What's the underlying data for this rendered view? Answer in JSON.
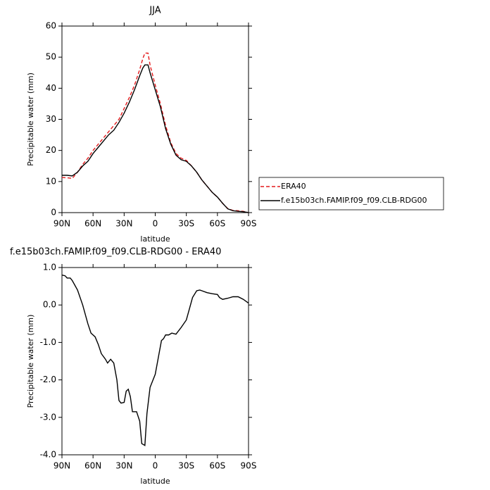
{
  "chart_data": [
    {
      "type": "line",
      "title": "JJA",
      "x_label": "latitude",
      "y_label": "Precipitable water (mm)",
      "x": [
        90,
        85,
        80,
        75,
        70,
        65,
        60,
        55,
        50,
        45,
        40,
        35,
        30,
        25,
        20,
        15,
        12,
        10,
        7,
        5,
        0,
        -5,
        -10,
        -15,
        -20,
        -25,
        -30,
        -35,
        -40,
        -45,
        -50,
        -55,
        -60,
        -65,
        -70,
        -75,
        -80,
        -85,
        -90
      ],
      "series": [
        {
          "name": "ERA40",
          "color": "#e41a1c",
          "dash": true,
          "values": [
            11.3,
            11.2,
            11,
            13,
            15.5,
            17.5,
            20,
            22,
            24,
            26,
            28,
            30,
            33.5,
            37,
            41,
            46,
            49.5,
            51.3,
            51.3,
            47.5,
            41,
            35,
            28,
            22.5,
            19,
            17.5,
            16.8,
            15,
            13,
            10.5,
            8.5,
            6.5,
            5,
            3,
            1.3,
            0.7,
            0.6,
            0.4,
            0
          ]
        },
        {
          "name": "f.e15b03ch.FAMIP.f09_f09.CLB-RDG00",
          "color": "#000000",
          "dash": false,
          "values": [
            12,
            12,
            11.8,
            13,
            15,
            16.5,
            19,
            21,
            23,
            25,
            26.5,
            29,
            32,
            35.5,
            39.5,
            44,
            46.5,
            47.5,
            47.5,
            45,
            39.5,
            34,
            27,
            22,
            18.5,
            17,
            16.5,
            15,
            13,
            10.5,
            8.5,
            6.5,
            5,
            3,
            1.2,
            0.6,
            0.4,
            0.3,
            0
          ]
        }
      ],
      "xlim": [
        90,
        -90
      ],
      "xticks": [
        {
          "value": 90,
          "label": "90N"
        },
        {
          "value": 60,
          "label": "60N"
        },
        {
          "value": 30,
          "label": "30N"
        },
        0,
        {
          "value": -30,
          "label": "30S"
        },
        {
          "value": -60,
          "label": "60S"
        },
        {
          "value": -90,
          "label": "90S"
        }
      ],
      "ylim": [
        0,
        60
      ],
      "yticks": [
        0,
        10,
        20,
        30,
        40,
        50,
        60
      ],
      "legend": "right"
    },
    {
      "type": "line",
      "title": "f.e15b03ch.FAMIP.f09_f09.CLB-RDG00 - ERA40",
      "x_label": "latitude",
      "y_label": "Precipitable water (mm)",
      "x": [
        90,
        87,
        85,
        82,
        80,
        75,
        70,
        65,
        62,
        58,
        55,
        52,
        48,
        46,
        43,
        40,
        37,
        35,
        33,
        30,
        28,
        26,
        24,
        22,
        18,
        15,
        13,
        10,
        8,
        5,
        0,
        -3,
        -6,
        -8,
        -10,
        -13,
        -16,
        -20,
        -25,
        -30,
        -33,
        -36,
        -40,
        -43,
        -45,
        -50,
        -55,
        -60,
        -62,
        -65,
        -70,
        -75,
        -80,
        -85,
        -90
      ],
      "values": [
        0.8,
        0.78,
        0.72,
        0.72,
        0.65,
        0.4,
        0.0,
        -0.5,
        -0.75,
        -0.85,
        -1.05,
        -1.3,
        -1.45,
        -1.55,
        -1.45,
        -1.55,
        -2.0,
        -2.55,
        -2.62,
        -2.6,
        -2.3,
        -2.25,
        -2.45,
        -2.85,
        -2.85,
        -3.1,
        -3.7,
        -3.75,
        -2.9,
        -2.2,
        -1.85,
        -1.4,
        -0.95,
        -0.9,
        -0.8,
        -0.8,
        -0.75,
        -0.78,
        -0.6,
        -0.4,
        -0.1,
        0.2,
        0.38,
        0.4,
        0.38,
        0.33,
        0.3,
        0.28,
        0.2,
        0.15,
        0.18,
        0.22,
        0.22,
        0.15,
        0.05
      ],
      "color": "#000000",
      "xlim": [
        90,
        -90
      ],
      "xticks": [
        {
          "value": 90,
          "label": "90N"
        },
        {
          "value": 60,
          "label": "60N"
        },
        {
          "value": 30,
          "label": "30N"
        },
        0,
        {
          "value": -30,
          "label": "30S"
        },
        {
          "value": -60,
          "label": "60S"
        },
        {
          "value": -90,
          "label": "90S"
        }
      ],
      "ylim": [
        -4,
        1
      ],
      "yticks": [
        {
          "value": -4,
          "label": "-4.0"
        },
        {
          "value": -3,
          "label": "-3.0"
        },
        {
          "value": -2,
          "label": "-2.0"
        },
        {
          "value": -1,
          "label": "-1.0"
        },
        {
          "value": 0,
          "label": "0.0"
        },
        {
          "value": 1,
          "label": "1.0"
        }
      ]
    }
  ]
}
